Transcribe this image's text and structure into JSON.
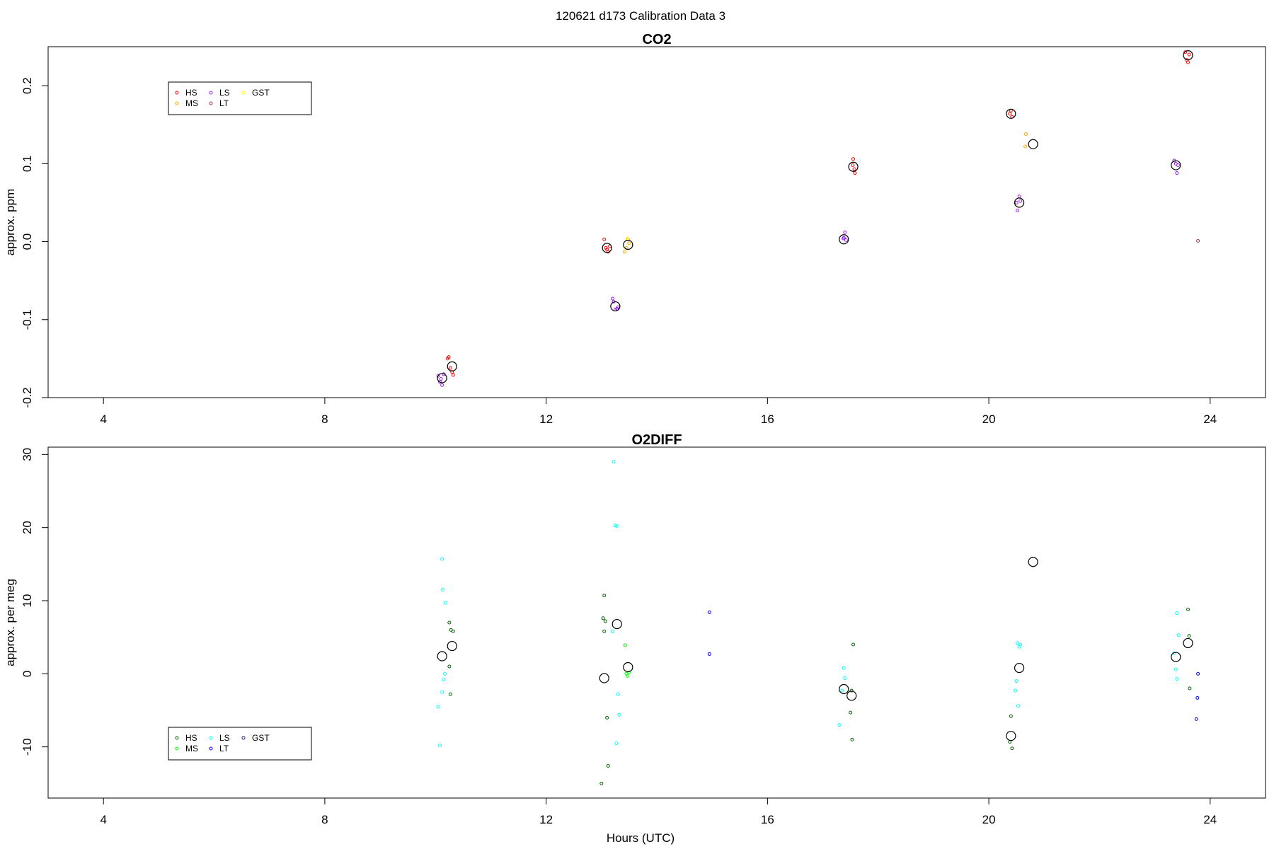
{
  "figure": {
    "title": "120621   d173   Calibration Data 3",
    "xlabel": "Hours (UTC)"
  },
  "chart_data": [
    {
      "type": "scatter",
      "title": "CO2",
      "xlabel": "",
      "ylabel": "approx. ppm",
      "xlim": [
        3,
        25
      ],
      "ylim": [
        -0.2,
        0.25
      ],
      "xticks": [
        4,
        8,
        12,
        16,
        20,
        24
      ],
      "xtick_labels": [
        "4",
        "8",
        "12",
        "16",
        "20",
        "24"
      ],
      "yticks": [
        -0.2,
        -0.1,
        0.0,
        0.1,
        0.2
      ],
      "ytick_labels": [
        "-0.2",
        "-0.1",
        "0.0",
        "0.1",
        "0.2"
      ],
      "grid": false,
      "legend_position": "top-left",
      "legend": [
        {
          "name": "HS",
          "color": "#ff0000"
        },
        {
          "name": "MS",
          "color": "#ffa500"
        },
        {
          "name": "LS",
          "color": "#a020f0"
        },
        {
          "name": "LT",
          "color": "#b03060"
        },
        {
          "name": "GST",
          "color": "#ffff00"
        }
      ],
      "series": [
        {
          "name": "HS",
          "color": "#ff0000",
          "points": [
            [
              10.22,
              -0.15
            ],
            [
              10.24,
              -0.148
            ],
            [
              10.3,
              -0.167
            ],
            [
              10.32,
              -0.171
            ],
            [
              10.27,
              -0.162
            ],
            [
              13.05,
              0.003
            ],
            [
              13.1,
              -0.01
            ],
            [
              13.12,
              -0.013
            ],
            [
              13.15,
              -0.006
            ],
            [
              13.08,
              -0.008
            ],
            [
              17.55,
              0.106
            ],
            [
              17.57,
              0.093
            ],
            [
              17.58,
              0.088
            ],
            [
              17.54,
              0.098
            ],
            [
              20.4,
              0.168
            ],
            [
              20.42,
              0.16
            ],
            [
              20.38,
              0.164
            ],
            [
              23.55,
              0.243
            ],
            [
              23.58,
              0.233
            ],
            [
              23.6,
              0.23
            ],
            [
              23.62,
              0.24
            ]
          ]
        },
        {
          "name": "MS",
          "color": "#ffa500",
          "points": [
            [
              13.42,
              -0.013
            ],
            [
              13.45,
              -0.008
            ],
            [
              13.48,
              0.003
            ],
            [
              13.5,
              -0.002
            ],
            [
              20.67,
              0.138
            ],
            [
              20.66,
              0.122
            ]
          ]
        },
        {
          "name": "LS",
          "color": "#a020f0",
          "points": [
            [
              10.05,
              -0.172
            ],
            [
              10.08,
              -0.18
            ],
            [
              10.1,
              -0.176
            ],
            [
              10.15,
              -0.17
            ],
            [
              10.12,
              -0.184
            ],
            [
              13.2,
              -0.073
            ],
            [
              13.22,
              -0.077
            ],
            [
              13.25,
              -0.087
            ],
            [
              13.28,
              -0.086
            ],
            [
              13.3,
              -0.084
            ],
            [
              17.4,
              0.012
            ],
            [
              17.38,
              0.005
            ],
            [
              17.42,
              0.002
            ],
            [
              17.37,
              0.004
            ],
            [
              20.52,
              0.04
            ],
            [
              20.55,
              0.058
            ],
            [
              20.57,
              0.052
            ],
            [
              20.5,
              0.05
            ],
            [
              23.35,
              0.104
            ],
            [
              23.38,
              0.1
            ],
            [
              23.4,
              0.088
            ],
            [
              23.42,
              0.098
            ]
          ]
        },
        {
          "name": "LT",
          "color": "#b03060",
          "points": [
            [
              23.78,
              0.001
            ]
          ]
        },
        {
          "name": "GST",
          "color": "#ffff00",
          "points": [
            [
              13.47,
              0.004
            ]
          ]
        },
        {
          "name": "mean",
          "color": "#000000",
          "marker": "large-circle",
          "points": [
            [
              10.12,
              -0.175
            ],
            [
              10.3,
              -0.16
            ],
            [
              13.1,
              -0.008
            ],
            [
              13.25,
              -0.083
            ],
            [
              13.48,
              -0.004
            ],
            [
              17.38,
              0.003
            ],
            [
              17.55,
              0.096
            ],
            [
              20.4,
              0.164
            ],
            [
              20.55,
              0.05
            ],
            [
              20.8,
              0.125
            ],
            [
              23.38,
              0.098
            ],
            [
              23.6,
              0.239
            ]
          ]
        }
      ]
    },
    {
      "type": "scatter",
      "title": "O2DIFF",
      "xlabel": "Hours (UTC)",
      "ylabel": "approx. per meg",
      "xlim": [
        3,
        25
      ],
      "ylim": [
        -17,
        31
      ],
      "xticks": [
        4,
        8,
        12,
        16,
        20,
        24
      ],
      "xtick_labels": [
        "4",
        "8",
        "12",
        "16",
        "20",
        "24"
      ],
      "yticks": [
        -10,
        0,
        10,
        20,
        30
      ],
      "ytick_labels": [
        "-10",
        "0",
        "10",
        "20",
        "30"
      ],
      "grid": false,
      "legend_position": "bottom-left",
      "legend": [
        {
          "name": "HS",
          "color": "#006400"
        },
        {
          "name": "MS",
          "color": "#00ff00"
        },
        {
          "name": "LS",
          "color": "#00ffff"
        },
        {
          "name": "LT",
          "color": "#0000ff"
        },
        {
          "name": "GST",
          "color": "#191970"
        }
      ],
      "series": [
        {
          "name": "HS",
          "color": "#006400",
          "points": [
            [
              10.25,
              7.0
            ],
            [
              10.28,
              6.0
            ],
            [
              10.32,
              5.8
            ],
            [
              10.25,
              1.0
            ],
            [
              10.27,
              -2.8
            ],
            [
              13.05,
              10.7
            ],
            [
              13.03,
              7.6
            ],
            [
              13.05,
              5.8
            ],
            [
              13.07,
              7.2
            ],
            [
              13.1,
              -6.0
            ],
            [
              13.12,
              -12.6
            ],
            [
              13.0,
              -15.0
            ],
            [
              17.55,
              4.0
            ],
            [
              17.52,
              -2.3
            ],
            [
              17.5,
              -5.3
            ],
            [
              17.53,
              -9.0
            ],
            [
              20.4,
              -5.8
            ],
            [
              20.42,
              -10.2
            ],
            [
              20.38,
              -9.3
            ],
            [
              23.6,
              8.8
            ],
            [
              23.62,
              5.2
            ],
            [
              23.63,
              -2.0
            ]
          ]
        },
        {
          "name": "MS",
          "color": "#00ff00",
          "points": [
            [
              13.45,
              0.0
            ],
            [
              13.47,
              -0.3
            ],
            [
              13.5,
              0.2
            ],
            [
              13.43,
              3.9
            ]
          ]
        },
        {
          "name": "LS",
          "color": "#00ffff",
          "points": [
            [
              10.12,
              15.7
            ],
            [
              10.13,
              11.5
            ],
            [
              10.18,
              9.7
            ],
            [
              10.17,
              0.0
            ],
            [
              10.15,
              -0.8
            ],
            [
              10.12,
              -2.5
            ],
            [
              10.05,
              -4.5
            ],
            [
              10.08,
              -9.8
            ],
            [
              13.22,
              29.0
            ],
            [
              13.25,
              20.3
            ],
            [
              13.28,
              20.2
            ],
            [
              13.2,
              5.8
            ],
            [
              13.3,
              -2.8
            ],
            [
              13.32,
              -5.6
            ],
            [
              13.27,
              -9.5
            ],
            [
              17.38,
              0.8
            ],
            [
              17.4,
              -0.6
            ],
            [
              17.35,
              -2.3
            ],
            [
              17.3,
              -7.0
            ],
            [
              20.52,
              4.2
            ],
            [
              20.55,
              3.7
            ],
            [
              20.57,
              4.0
            ],
            [
              20.5,
              -1.0
            ],
            [
              20.48,
              -2.3
            ],
            [
              20.53,
              -4.4
            ],
            [
              23.4,
              8.3
            ],
            [
              23.43,
              5.3
            ],
            [
              23.35,
              2.8
            ],
            [
              23.38,
              0.6
            ],
            [
              23.4,
              -0.7
            ]
          ]
        },
        {
          "name": "LT",
          "color": "#0000ff",
          "points": [
            [
              14.95,
              8.4
            ],
            [
              14.95,
              2.7
            ],
            [
              23.78,
              0.0
            ],
            [
              23.77,
              -3.3
            ],
            [
              23.75,
              -6.2
            ]
          ]
        },
        {
          "name": "GST",
          "color": "#191970",
          "points": []
        },
        {
          "name": "mean",
          "color": "#000000",
          "marker": "large-circle",
          "points": [
            [
              10.12,
              2.4
            ],
            [
              10.3,
              3.8
            ],
            [
              13.05,
              -0.6
            ],
            [
              13.28,
              6.8
            ],
            [
              13.48,
              0.9
            ],
            [
              17.38,
              -2.1
            ],
            [
              17.52,
              -3.0
            ],
            [
              20.4,
              -8.5
            ],
            [
              20.55,
              0.8
            ],
            [
              20.8,
              15.3
            ],
            [
              23.38,
              2.3
            ],
            [
              23.6,
              4.2
            ]
          ]
        }
      ]
    }
  ]
}
